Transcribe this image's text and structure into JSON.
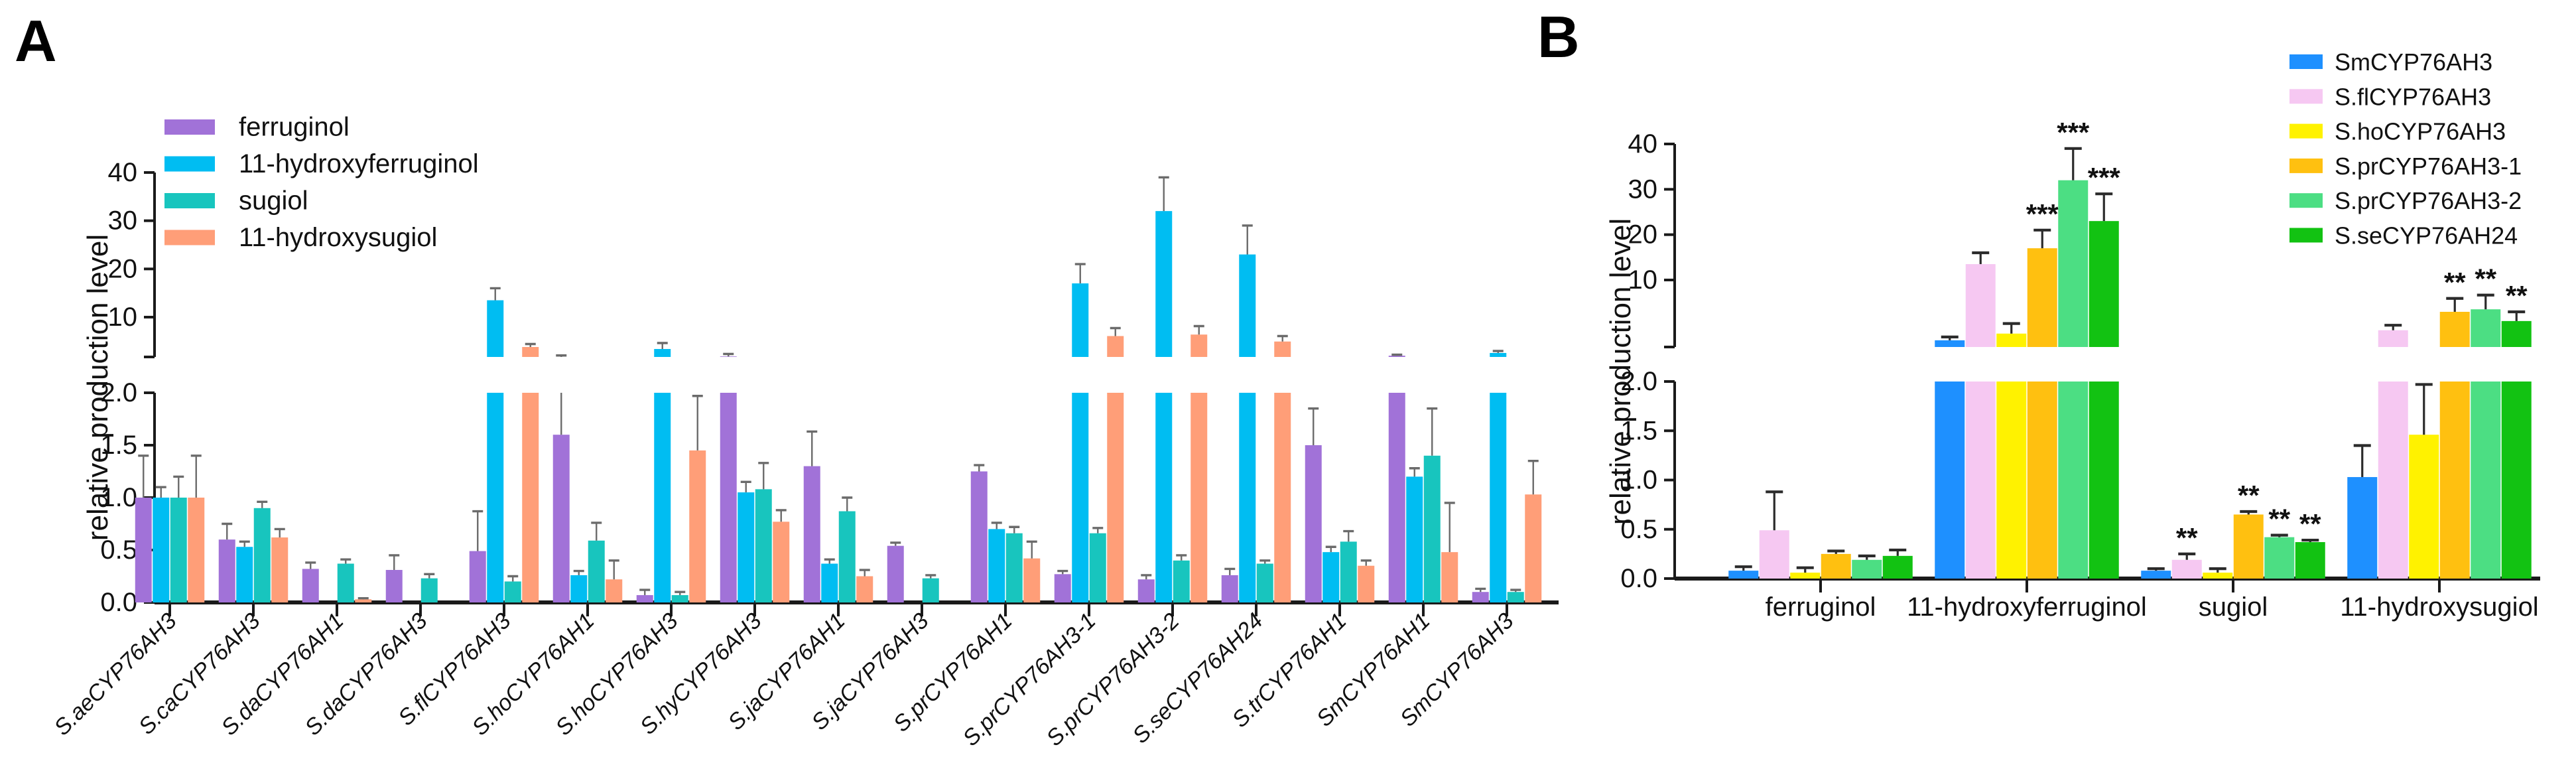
{
  "figure": {
    "background": "#ffffff",
    "error_bar_color_a": "#6b6b6b",
    "error_bar_color_b": "#2b2b2b",
    "axis_color": "#1a1a1a"
  },
  "chart_data": [
    {
      "id": "A",
      "panel_label": "A",
      "type": "bar",
      "title": "",
      "xlabel": "",
      "ylabel": "relative production level",
      "axis_break": true,
      "top_segment_range": [
        2,
        40
      ],
      "top_ticks": [
        "10",
        "20",
        "30",
        "40"
      ],
      "bottom_segment_range": [
        0,
        2
      ],
      "bottom_ticks": [
        "0.0",
        "0.5",
        "1.0",
        "1.5",
        "2.0"
      ],
      "grid": false,
      "legend_position": "top-left",
      "x_tick_style": "italic-rotated-45",
      "categories": [
        "S.aeCYP76AH3",
        "S.caCYP76AH3",
        "S.daCYP76AH1",
        "S.daCYP76AH3",
        "S.flCYP76AH3",
        "S.hoCYP76AH1",
        "S.hoCYP76AH3",
        "S.hyCYP76AH3",
        "S.jaCYP76AH1",
        "S.jaCYP76AH3",
        "S.prCYP76AH1",
        "S.prCYP76AH3-1",
        "S.prCYP76AH3-2",
        "S.seCYP76AH24",
        "S.trCYP76AH1",
        "SmCYP76AH1",
        "SmCYP76AH3"
      ],
      "series": [
        {
          "name": "ferruginol",
          "color": "#A172D8",
          "values": [
            1.0,
            0.6,
            0.32,
            0.31,
            0.49,
            1.6,
            0.07,
            2.1,
            1.3,
            0.54,
            1.25,
            0.27,
            0.22,
            0.26,
            1.5,
            2.25,
            0.1
          ],
          "err_top": [
            1.4,
            0.75,
            0.38,
            0.45,
            0.87,
            2.3,
            0.12,
            2.6,
            1.63,
            0.57,
            1.31,
            0.3,
            0.26,
            0.32,
            1.85,
            2.45,
            0.13
          ]
        },
        {
          "name": "11-hydroxyferruginol",
          "color": "#00BDF2",
          "values": [
            1.0,
            0.53,
            0,
            0,
            13.5,
            0.26,
            3.6,
            1.05,
            0.37,
            0,
            0.7,
            17.0,
            32.0,
            23.0,
            0.48,
            1.2,
            2.8
          ],
          "err_top": [
            1.1,
            0.58,
            0,
            0,
            16.0,
            0.3,
            4.8,
            1.15,
            0.41,
            0,
            0.76,
            21.0,
            39.0,
            29.0,
            0.53,
            1.28,
            3.2
          ]
        },
        {
          "name": "sugiol",
          "color": "#18C5BE",
          "values": [
            1.0,
            0.9,
            0.37,
            0.23,
            0.2,
            0.59,
            0.07,
            1.08,
            0.87,
            0.23,
            0.66,
            0.66,
            0.4,
            0.37,
            0.58,
            1.4,
            0.1
          ],
          "err_top": [
            1.2,
            0.96,
            0.41,
            0.27,
            0.25,
            0.76,
            0.1,
            1.33,
            1.0,
            0.26,
            0.72,
            0.71,
            0.45,
            0.4,
            0.68,
            1.85,
            0.12
          ]
        },
        {
          "name": "11-hydroxysugiol",
          "color": "#FF9E78",
          "values": [
            1.0,
            0.62,
            0.03,
            0,
            4.0,
            0.22,
            1.45,
            0.77,
            0.25,
            0,
            0.42,
            6.2,
            6.5,
            5.1,
            0.35,
            0.48,
            1.03
          ],
          "err_top": [
            1.4,
            0.7,
            0.04,
            0,
            4.6,
            0.4,
            1.97,
            0.88,
            0.31,
            0,
            0.58,
            7.8,
            8.2,
            6.2,
            0.4,
            0.95,
            1.35
          ]
        }
      ]
    },
    {
      "id": "B",
      "panel_label": "B",
      "type": "bar",
      "title": "",
      "xlabel": "",
      "ylabel": "relative production level",
      "axis_break": true,
      "top_segment_range": [
        2,
        40
      ],
      "top_ticks": [
        "10",
        "20",
        "30",
        "40"
      ],
      "bottom_segment_range": [
        0,
        2
      ],
      "bottom_ticks": [
        "0.0",
        "0.5",
        "1.0",
        "1.5",
        "2.0"
      ],
      "grid": false,
      "legend_position": "top-right",
      "x_tick_style": "horizontal",
      "categories": [
        "ferruginol",
        "11-hydroxyferruginol",
        "sugiol",
        "11-hydroxysugiol"
      ],
      "series": [
        {
          "name": "SmCYP76AH3",
          "color": "#1E90FF",
          "values": [
            0.08,
            2.8,
            0.08,
            1.03
          ],
          "err_top": [
            0.12,
            3.2,
            0.1,
            1.35
          ],
          "sig": [
            "",
            "",
            "",
            ""
          ]
        },
        {
          "name": "S.flCYP76AH3",
          "color": "#F6C8F2",
          "values": [
            0.49,
            13.5,
            0.19,
            4.0
          ],
          "err_top": [
            0.88,
            16.0,
            0.25,
            4.6
          ],
          "sig": [
            "",
            "",
            "**",
            ""
          ]
        },
        {
          "name": "S.hoCYP76AH3",
          "color": "#FFF200",
          "values": [
            0.06,
            3.6,
            0.06,
            1.46
          ],
          "err_top": [
            0.11,
            4.8,
            0.1,
            1.97
          ],
          "sig": [
            "",
            "",
            "",
            ""
          ]
        },
        {
          "name": "S.prCYP76AH3-1",
          "color": "#FFC010",
          "values": [
            0.25,
            17.0,
            0.65,
            6.2
          ],
          "err_top": [
            0.28,
            21.0,
            0.68,
            7.8
          ],
          "sig": [
            "",
            "***",
            "**",
            "**"
          ]
        },
        {
          "name": "S.prCYP76AH3-2",
          "color": "#4CDE83",
          "values": [
            0.19,
            32.0,
            0.42,
            6.5
          ],
          "err_top": [
            0.23,
            39.0,
            0.44,
            8.2
          ],
          "sig": [
            "",
            "***",
            "**",
            "**"
          ]
        },
        {
          "name": "S.seCYP76AH24",
          "color": "#12C212",
          "values": [
            0.23,
            23.0,
            0.37,
            5.1
          ],
          "err_top": [
            0.29,
            29.0,
            0.39,
            6.2
          ],
          "sig": [
            "",
            "***",
            "**",
            "**"
          ]
        }
      ]
    }
  ]
}
